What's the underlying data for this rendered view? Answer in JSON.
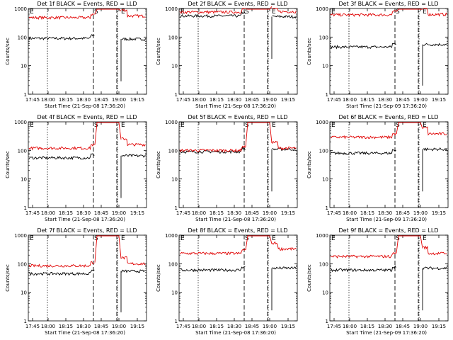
{
  "chart_data": [
    {
      "type": "line",
      "title": "Det 1f BLACK = Events, RED = LLD",
      "xlabel": "Start Time (21-Sep-08 17:36:20)",
      "ylabel": "Counts/sec",
      "yscale": "log",
      "ylim": [
        1,
        1000
      ],
      "x_ticks": [
        "17:45",
        "18:00",
        "18:15",
        "18:30",
        "18:45",
        "19:00",
        "19:15"
      ],
      "y_ticks": [
        "1",
        "10",
        "100",
        "1000"
      ],
      "markers": [
        "S",
        "E"
      ],
      "series": [
        {
          "name": "BLACK = Events",
          "color": "#000000",
          "level": 90,
          "post": 85,
          "spike": false
        },
        {
          "name": "RED = LLD",
          "color": "#e00000",
          "level": 480,
          "post": 550,
          "spike": true
        }
      ]
    },
    {
      "type": "line",
      "title": "Det 2f BLACK = Events, RED = LLD",
      "xlabel": "Start Time (21-Sep-08 17:36:20)",
      "ylabel": "Counts/sec",
      "yscale": "log",
      "ylim": [
        1,
        1000
      ],
      "x_ticks": [
        "17:45",
        "18:00",
        "18:15",
        "18:30",
        "18:45",
        "19:00",
        "19:15"
      ],
      "y_ticks": [
        "1",
        "10",
        "100",
        "1000"
      ],
      "markers": [
        "S",
        "E"
      ],
      "series": [
        {
          "name": "BLACK = Events",
          "color": "#000000",
          "level": 550,
          "post": 520,
          "spike": false
        },
        {
          "name": "RED = LLD",
          "color": "#e00000",
          "level": 750,
          "post": 780,
          "spike": true
        }
      ]
    },
    {
      "type": "line",
      "title": "Det 3f BLACK = Events, RED = LLD",
      "xlabel": "Start Time (21-Sep-09 17:36:20)",
      "ylabel": "Counts/sec",
      "yscale": "log",
      "ylim": [
        1,
        1000
      ],
      "x_ticks": [
        "17:45",
        "18:00",
        "18:15",
        "18:30",
        "18:45",
        "19:00",
        "19:15"
      ],
      "y_ticks": [
        "1",
        "10",
        "100",
        "1000"
      ],
      "markers": [
        "S",
        "E"
      ],
      "series": [
        {
          "name": "BLACK = Events",
          "color": "#000000",
          "level": 45,
          "post": 55,
          "spike": false
        },
        {
          "name": "RED = LLD",
          "color": "#e00000",
          "level": 600,
          "post": 620,
          "spike": true
        }
      ]
    },
    {
      "type": "line",
      "title": "Det 4f BLACK = Events, RED = LLD",
      "xlabel": "Start Time (21-Sep-08 17:36:20)",
      "ylabel": "Counts/sec",
      "yscale": "log",
      "ylim": [
        1,
        1000
      ],
      "x_ticks": [
        "17:45",
        "18:00",
        "18:15",
        "18:30",
        "18:45",
        "19:00",
        "19:15"
      ],
      "y_ticks": [
        "1",
        "10",
        "100",
        "1000"
      ],
      "markers": [
        "S",
        "E"
      ],
      "series": [
        {
          "name": "BLACK = Events",
          "color": "#000000",
          "level": 55,
          "post": 65,
          "spike": false
        },
        {
          "name": "RED = LLD",
          "color": "#e00000",
          "level": 120,
          "post": 160,
          "spike": true
        }
      ]
    },
    {
      "type": "line",
      "title": "Det 5f BLACK = Events, RED = LLD",
      "xlabel": "Start Time (21-Sep-08 17:36:20)",
      "ylabel": "Counts/sec",
      "yscale": "log",
      "ylim": [
        1,
        1000
      ],
      "x_ticks": [
        "17:45",
        "18:00",
        "18:15",
        "18:30",
        "18:45",
        "19:00",
        "19:15"
      ],
      "y_ticks": [
        "1",
        "10",
        "100",
        "1000"
      ],
      "markers": [
        "S",
        "E"
      ],
      "series": [
        {
          "name": "BLACK = Events",
          "color": "#000000",
          "level": 90,
          "post": 110,
          "spike": false
        },
        {
          "name": "RED = LLD",
          "color": "#e00000",
          "level": 100,
          "post": 120,
          "spike": true
        }
      ]
    },
    {
      "type": "line",
      "title": "Det 6f BLACK = Events, RED = LLD",
      "xlabel": "Start Time (21-Sep-09 17:36:20)",
      "ylabel": "Counts/sec",
      "yscale": "log",
      "ylim": [
        1,
        1000
      ],
      "x_ticks": [
        "17:45",
        "18:00",
        "18:15",
        "18:30",
        "18:45",
        "19:00",
        "19:15"
      ],
      "y_ticks": [
        "1",
        "10",
        "100",
        "1000"
      ],
      "markers": [
        "S",
        "E"
      ],
      "series": [
        {
          "name": "BLACK = Events",
          "color": "#000000",
          "level": 80,
          "post": 110,
          "spike": false
        },
        {
          "name": "RED = LLD",
          "color": "#e00000",
          "level": 290,
          "post": 380,
          "spike": true
        }
      ]
    },
    {
      "type": "line",
      "title": "Det 7f BLACK = Events, RED = LLD",
      "xlabel": "Start Time (21-Sep-08 17:36:20)",
      "ylabel": "Counts/sec",
      "yscale": "log",
      "ylim": [
        1,
        1000
      ],
      "x_ticks": [
        "17:45",
        "18:00",
        "18:15",
        "18:30",
        "18:45",
        "19:00",
        "19:15"
      ],
      "y_ticks": [
        "1",
        "10",
        "100",
        "1000"
      ],
      "markers": [
        "S",
        "E"
      ],
      "series": [
        {
          "name": "BLACK = Events",
          "color": "#000000",
          "level": 45,
          "post": 55,
          "spike": false
        },
        {
          "name": "RED = LLD",
          "color": "#e00000",
          "level": 85,
          "post": 100,
          "spike": true
        }
      ]
    },
    {
      "type": "line",
      "title": "Det 8f BLACK = Events, RED = LLD",
      "xlabel": "Start Time (21-Sep-08 17:36:20)",
      "ylabel": "Counts/sec",
      "yscale": "log",
      "ylim": [
        1,
        1000
      ],
      "x_ticks": [
        "17:45",
        "18:00",
        "18:15",
        "18:30",
        "18:45",
        "19:00",
        "19:15"
      ],
      "y_ticks": [
        "1",
        "10",
        "100",
        "1000"
      ],
      "markers": [
        "S",
        "E"
      ],
      "series": [
        {
          "name": "BLACK = Events",
          "color": "#000000",
          "level": 60,
          "post": 70,
          "spike": false
        },
        {
          "name": "RED = LLD",
          "color": "#e00000",
          "level": 230,
          "post": 330,
          "spike": true
        }
      ]
    },
    {
      "type": "line",
      "title": "Det 9f BLACK = Events, RED = LLD",
      "xlabel": "Start Time (21-Sep-09 17:36:20)",
      "ylabel": "Counts/sec",
      "yscale": "log",
      "ylim": [
        1,
        1000
      ],
      "x_ticks": [
        "17:45",
        "18:00",
        "18:15",
        "18:30",
        "18:45",
        "19:00",
        "19:15"
      ],
      "y_ticks": [
        "1",
        "10",
        "100",
        "1000"
      ],
      "markers": [
        "S",
        "E"
      ],
      "series": [
        {
          "name": "BLACK = Events",
          "color": "#000000",
          "level": 60,
          "post": 70,
          "spike": false
        },
        {
          "name": "RED = LLD",
          "color": "#e00000",
          "level": 180,
          "post": 230,
          "spike": true
        }
      ]
    }
  ]
}
